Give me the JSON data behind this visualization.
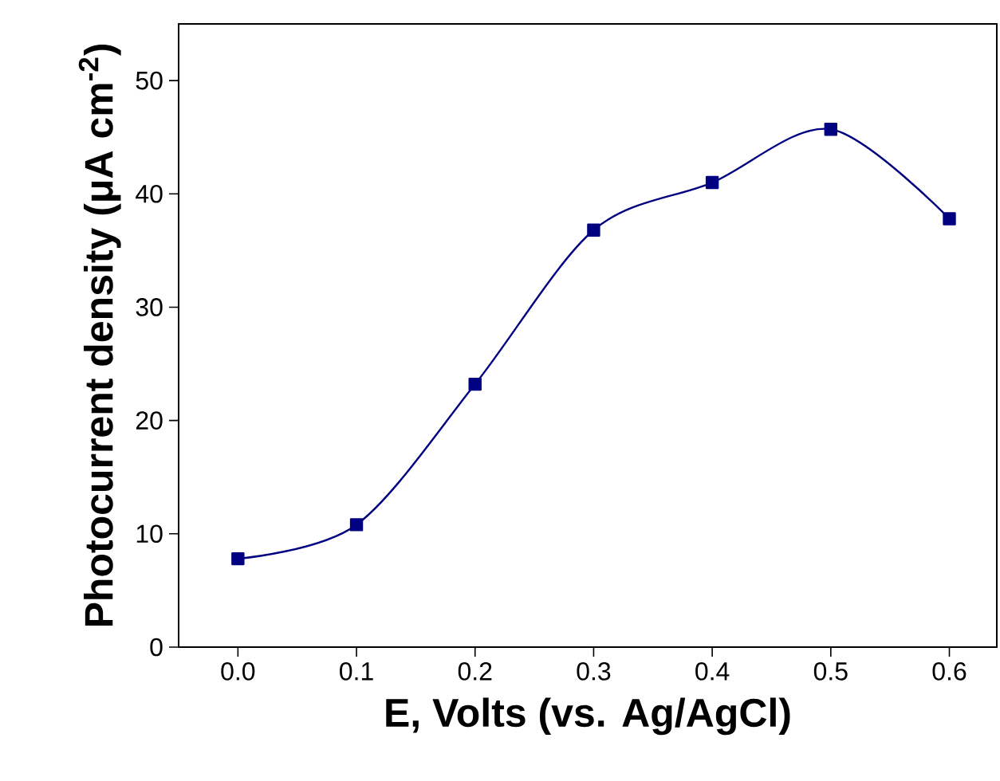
{
  "chart_data": {
    "type": "line",
    "xlabel": "E, Volts (vs. Ag/AgCl)",
    "ylabel": "Photocurrent density (μA cm$^{-2}$)",
    "x": [
      0.0,
      0.1,
      0.2,
      0.3,
      0.4,
      0.5,
      0.6
    ],
    "series": [
      {
        "color": "#000080",
        "values": [
          7.8,
          10.8,
          23.2,
          36.8,
          41.0,
          45.7,
          37.8
        ]
      }
    ],
    "xlim": [
      -0.05,
      0.64
    ],
    "ylim": [
      0,
      55
    ],
    "xticks": [
      {
        "value": 0.0,
        "label": "0.0"
      },
      {
        "value": 0.1,
        "label": "0.1"
      },
      {
        "value": 0.2,
        "label": "0.2"
      },
      {
        "value": 0.3,
        "label": "0.3"
      },
      {
        "value": 0.4,
        "label": "0.4"
      },
      {
        "value": 0.5,
        "label": "0.5"
      },
      {
        "value": 0.6,
        "label": "0.6"
      }
    ],
    "yticks": [
      0,
      10,
      20,
      30,
      40,
      50
    ],
    "marker": "square",
    "grid": false
  }
}
